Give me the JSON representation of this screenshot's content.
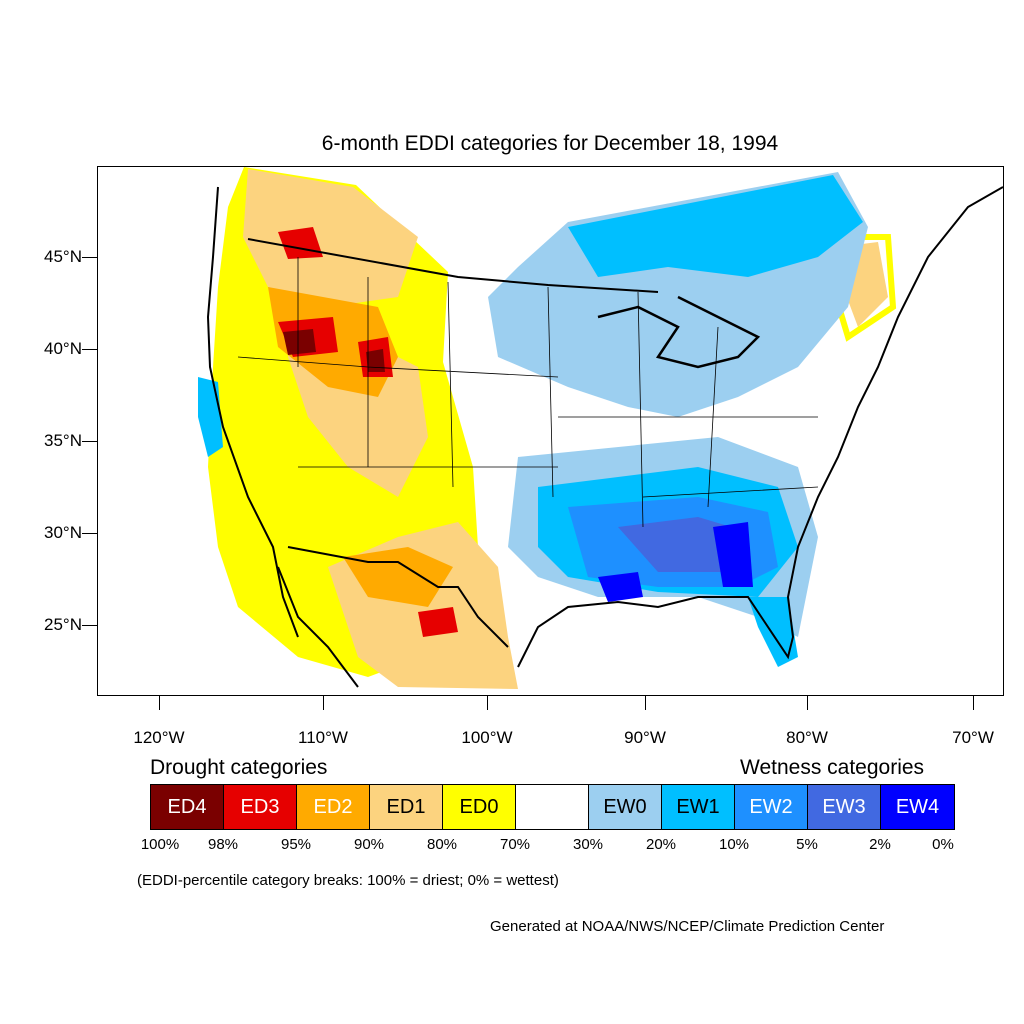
{
  "title": "6-month EDDI categories for December 18, 1994",
  "lat_labels": [
    "45°N",
    "40°N",
    "35°N",
    "30°N",
    "25°N"
  ],
  "lon_labels": [
    "120°W",
    "110°W",
    "100°W",
    "90°W",
    "80°W",
    "70°W"
  ],
  "legend": {
    "drought_heading": "Drought categories",
    "wetness_heading": "Wetness categories",
    "categories": [
      {
        "label": "ED4",
        "color": "#7a0000",
        "text_color": "#ffffff"
      },
      {
        "label": "ED3",
        "color": "#e60000",
        "text_color": "#ffffff"
      },
      {
        "label": "ED2",
        "color": "#ffaa00",
        "text_color": "#ffffff"
      },
      {
        "label": "ED1",
        "color": "#fcd37f",
        "text_color": "#000000"
      },
      {
        "label": "ED0",
        "color": "#ffff00",
        "text_color": "#000000"
      },
      {
        "label": "",
        "color": "#ffffff",
        "text_color": "#000000"
      },
      {
        "label": "EW0",
        "color": "#9ccff0",
        "text_color": "#000000"
      },
      {
        "label": "EW1",
        "color": "#00bfff",
        "text_color": "#000000"
      },
      {
        "label": "EW2",
        "color": "#1e90ff",
        "text_color": "#ffffff"
      },
      {
        "label": "EW3",
        "color": "#4169e1",
        "text_color": "#ffffff"
      },
      {
        "label": "EW4",
        "color": "#0000ff",
        "text_color": "#ffffff"
      }
    ],
    "breaks": [
      "100%",
      "98%",
      "95%",
      "90%",
      "80%",
      "70%",
      "30%",
      "20%",
      "10%",
      "5%",
      "2%",
      "0%"
    ]
  },
  "note": "(EDDI-percentile category breaks: 100% = driest; 0% = wettest)",
  "credit": "Generated at NOAA/NWS/NCEP/Climate Prediction Center"
}
